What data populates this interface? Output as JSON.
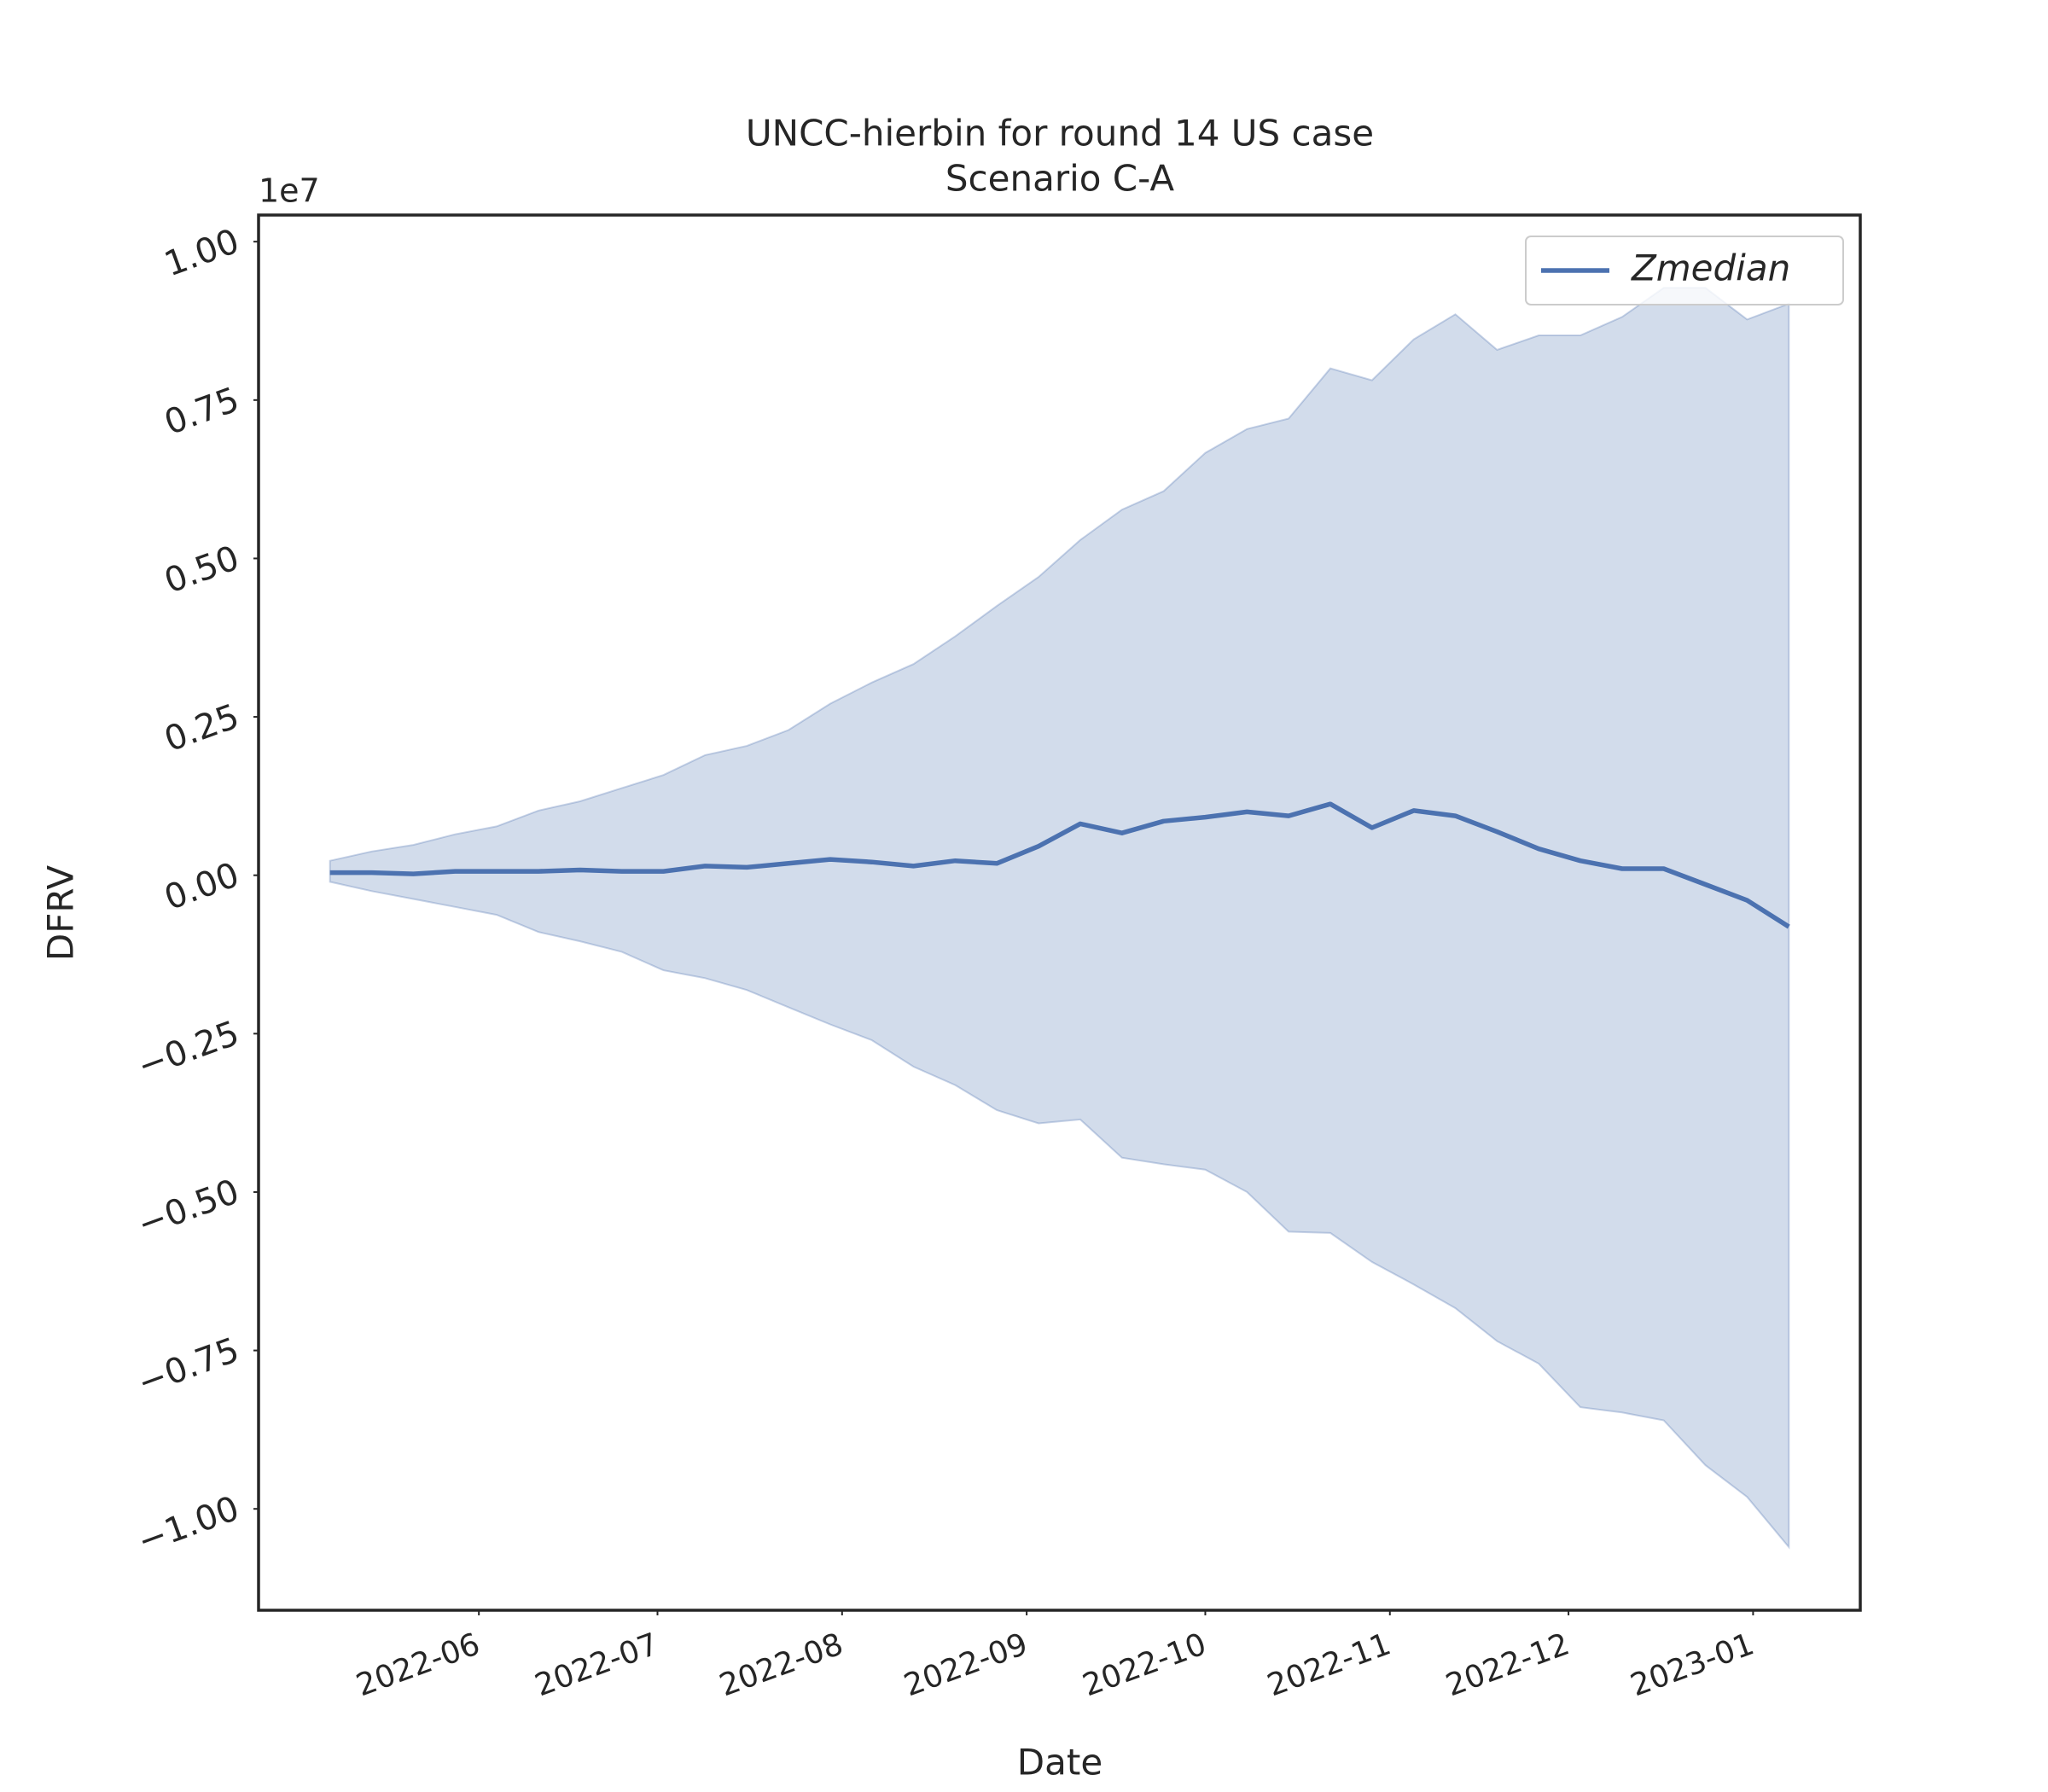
{
  "chart_data": {
    "type": "line",
    "title": "UNCC-hierbin for round 14 US case",
    "subtitle": "Scenario C-A",
    "xlabel": "Date",
    "ylabel": "DFRV",
    "y_offset_label": "1e7",
    "x": [
      "2022-05-07",
      "2022-05-14",
      "2022-05-21",
      "2022-05-28",
      "2022-06-04",
      "2022-06-11",
      "2022-06-18",
      "2022-06-25",
      "2022-07-02",
      "2022-07-09",
      "2022-07-16",
      "2022-07-23",
      "2022-07-30",
      "2022-08-06",
      "2022-08-13",
      "2022-08-20",
      "2022-08-27",
      "2022-09-03",
      "2022-09-10",
      "2022-09-17",
      "2022-09-24",
      "2022-10-01",
      "2022-10-08",
      "2022-10-15",
      "2022-10-22",
      "2022-10-29",
      "2022-11-05",
      "2022-11-12",
      "2022-11-19",
      "2022-11-26",
      "2022-12-03",
      "2022-12-10",
      "2022-12-17",
      "2022-12-24",
      "2022-12-31",
      "2023-01-07"
    ],
    "series": [
      {
        "name": "Zmedian",
        "color": "#4c72b0",
        "values": [
          42000,
          42000,
          21000,
          62000,
          62000,
          62000,
          83000,
          62000,
          62000,
          146000,
          125000,
          187000,
          250000,
          208000,
          146000,
          229000,
          187000,
          458000,
          812000,
          667000,
          854000,
          917000,
          1000000,
          937000,
          1125000,
          750000,
          1021000,
          937000,
          687000,
          417000,
          229000,
          104000,
          104000,
          -146000,
          -396000,
          -812000
        ]
      }
    ],
    "band": {
      "color": "#4c72b0",
      "upper": [
        229000,
        375000,
        479000,
        646000,
        771000,
        1021000,
        1167000,
        1375000,
        1583000,
        1896000,
        2042000,
        2292000,
        2708000,
        3042000,
        3333000,
        3771000,
        4250000,
        4708000,
        5292000,
        5771000,
        6062000,
        6667000,
        7042000,
        7208000,
        8000000,
        7812000,
        8458000,
        8854000,
        8292000,
        8521000,
        8521000,
        8812000,
        9271000,
        9271000,
        8771000,
        9021000
      ],
      "lower": [
        -104000,
        -250000,
        -375000,
        -500000,
        -625000,
        -896000,
        -1042000,
        -1208000,
        -1500000,
        -1625000,
        -1812000,
        -2083000,
        -2354000,
        -2604000,
        -3021000,
        -3312000,
        -3708000,
        -3917000,
        -3854000,
        -4458000,
        -4562000,
        -4646000,
        -5000000,
        -5625000,
        -5646000,
        -6104000,
        -6458000,
        -6833000,
        -7354000,
        -7708000,
        -8396000,
        -8479000,
        -8604000,
        -9312000,
        -9812000,
        -10604000
      ]
    },
    "xlim": [
      "2022-04-25",
      "2023-01-19"
    ],
    "xticks": [
      {
        "value": "2022-06-01",
        "label": "2022-06"
      },
      {
        "value": "2022-07-01",
        "label": "2022-07"
      },
      {
        "value": "2022-08-01",
        "label": "2022-08"
      },
      {
        "value": "2022-09-01",
        "label": "2022-09"
      },
      {
        "value": "2022-10-01",
        "label": "2022-10"
      },
      {
        "value": "2022-11-01",
        "label": "2022-11"
      },
      {
        "value": "2022-12-01",
        "label": "2022-12"
      },
      {
        "value": "2023-01-01",
        "label": "2023-01"
      }
    ],
    "ylim": [
      -11600000,
      10420000
    ],
    "yticks": [
      {
        "value": -10000000,
        "label": "−1.00"
      },
      {
        "value": -7500000,
        "label": "−0.75"
      },
      {
        "value": -5000000,
        "label": "−0.50"
      },
      {
        "value": -2500000,
        "label": "−0.25"
      },
      {
        "value": 0,
        "label": "0.00"
      },
      {
        "value": 2500000,
        "label": "0.25"
      },
      {
        "value": 5000000,
        "label": "0.50"
      },
      {
        "value": 7500000,
        "label": "0.75"
      },
      {
        "value": 10000000,
        "label": "1.00"
      }
    ],
    "grid": false,
    "legend": "upper right"
  }
}
